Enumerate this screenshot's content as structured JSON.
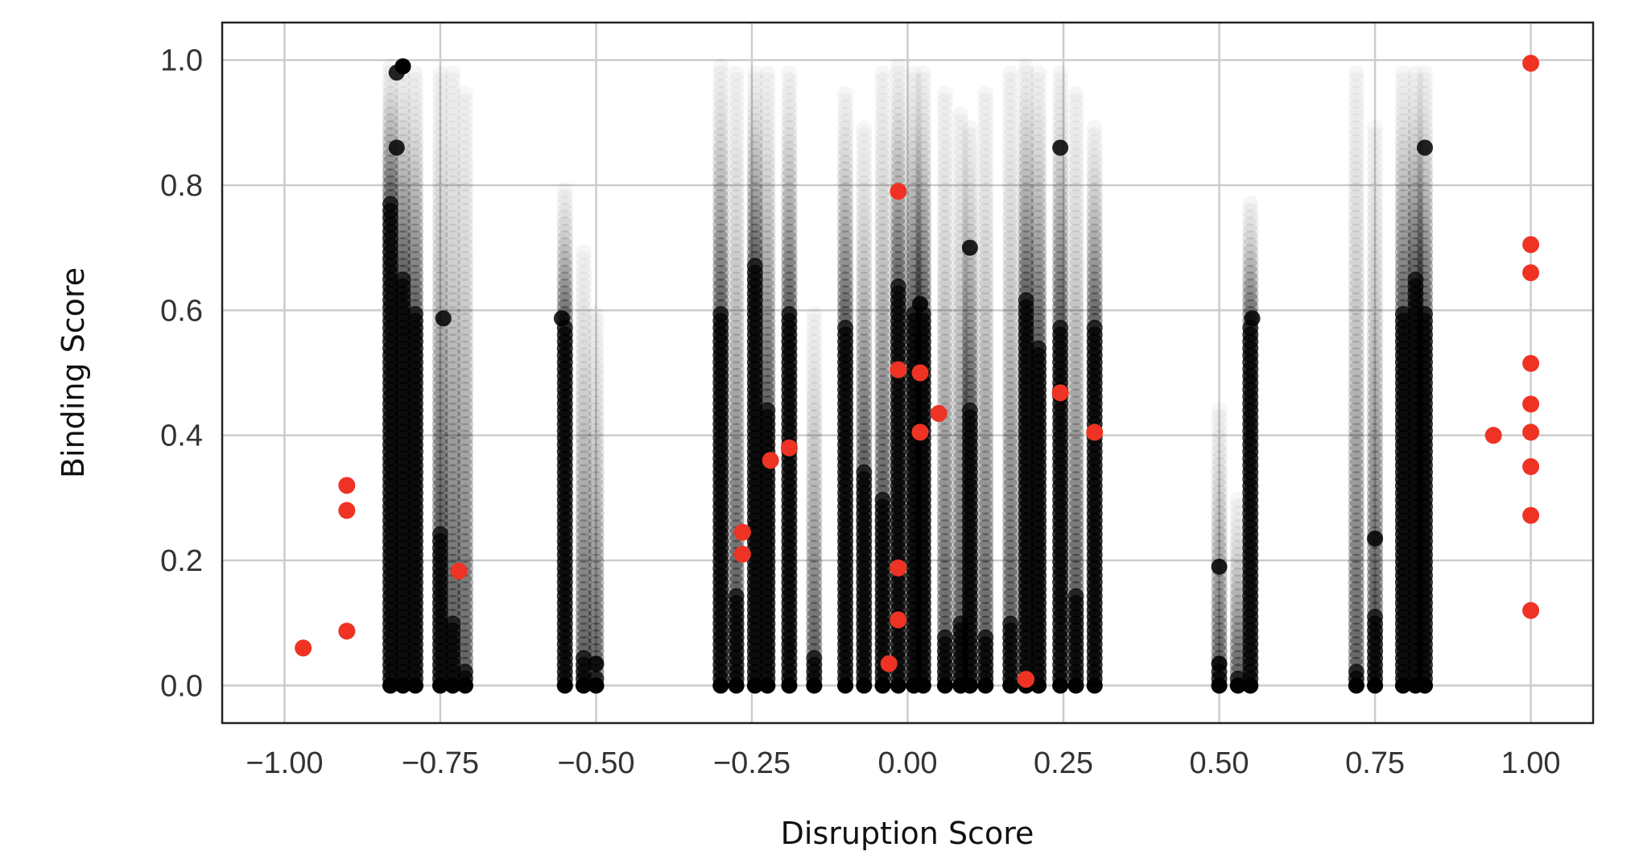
{
  "chart_data": {
    "type": "scatter",
    "xlabel": "Disruption Score",
    "ylabel": "Binding Score",
    "xlim": [
      -1.1,
      1.1
    ],
    "ylim": [
      -0.06,
      1.06
    ],
    "x_ticks": [
      -1.0,
      -0.75,
      -0.5,
      -0.25,
      0.0,
      0.25,
      0.5,
      0.75,
      1.0
    ],
    "x_tick_labels": [
      "−1.00",
      "−0.75",
      "−0.50",
      "−0.25",
      "0.00",
      "0.25",
      "0.50",
      "0.75",
      "1.00"
    ],
    "y_ticks": [
      0.0,
      0.2,
      0.4,
      0.6,
      0.8,
      1.0
    ],
    "y_tick_labels": [
      "0.0",
      "0.2",
      "0.4",
      "0.6",
      "0.8",
      "1.0"
    ],
    "grid": true,
    "colors": {
      "highlight": "#ee3324",
      "background_points": "#000000",
      "grid": "#cccccc",
      "frame": "#222222"
    },
    "background_columns": [
      {
        "x": -0.83,
        "ymax": 1.0,
        "solid": 0.78
      },
      {
        "x": -0.81,
        "ymax": 0.99,
        "solid": 0.66
      },
      {
        "x": -0.79,
        "ymax": 0.98,
        "solid": 0.6
      },
      {
        "x": -0.75,
        "ymax": 0.98,
        "solid": 0.25
      },
      {
        "x": -0.73,
        "ymax": 0.98,
        "solid": 0.1
      },
      {
        "x": -0.71,
        "ymax": 0.95,
        "solid": 0.03
      },
      {
        "x": -0.55,
        "ymax": 0.8,
        "solid": 0.58
      },
      {
        "x": -0.52,
        "ymax": 0.7,
        "solid": 0.05
      },
      {
        "x": -0.5,
        "ymax": 0.6,
        "solid": 0.02
      },
      {
        "x": -0.3,
        "ymax": 1.0,
        "solid": 0.6
      },
      {
        "x": -0.275,
        "ymax": 0.98,
        "solid": 0.15
      },
      {
        "x": -0.245,
        "ymax": 0.98,
        "solid": 0.68
      },
      {
        "x": -0.225,
        "ymax": 0.98,
        "solid": 0.45
      },
      {
        "x": -0.19,
        "ymax": 0.98,
        "solid": 0.6
      },
      {
        "x": -0.15,
        "ymax": 0.6,
        "solid": 0.05
      },
      {
        "x": -0.1,
        "ymax": 0.95,
        "solid": 0.58
      },
      {
        "x": -0.07,
        "ymax": 0.9,
        "solid": 0.35
      },
      {
        "x": -0.04,
        "ymax": 0.98,
        "solid": 0.3
      },
      {
        "x": -0.015,
        "ymax": 1.0,
        "solid": 0.64
      },
      {
        "x": 0.01,
        "ymax": 0.98,
        "solid": 0.6
      },
      {
        "x": 0.025,
        "ymax": 0.98,
        "solid": 0.6
      },
      {
        "x": 0.06,
        "ymax": 0.95,
        "solid": 0.08
      },
      {
        "x": 0.085,
        "ymax": 0.92,
        "solid": 0.1
      },
      {
        "x": 0.1,
        "ymax": 0.9,
        "solid": 0.45
      },
      {
        "x": 0.125,
        "ymax": 0.95,
        "solid": 0.08
      },
      {
        "x": 0.165,
        "ymax": 0.98,
        "solid": 0.1
      },
      {
        "x": 0.19,
        "ymax": 1.0,
        "solid": 0.62
      },
      {
        "x": 0.21,
        "ymax": 0.98,
        "solid": 0.55
      },
      {
        "x": 0.245,
        "ymax": 0.98,
        "solid": 0.58
      },
      {
        "x": 0.27,
        "ymax": 0.95,
        "solid": 0.15
      },
      {
        "x": 0.3,
        "ymax": 0.9,
        "solid": 0.58
      },
      {
        "x": 0.5,
        "ymax": 0.45,
        "solid": 0.03
      },
      {
        "x": 0.53,
        "ymax": 0.3,
        "solid": 0.02
      },
      {
        "x": 0.55,
        "ymax": 0.78,
        "solid": 0.58
      },
      {
        "x": 0.72,
        "ymax": 0.98,
        "solid": 0.03
      },
      {
        "x": 0.75,
        "ymax": 0.9,
        "solid": 0.12
      },
      {
        "x": 0.795,
        "ymax": 0.98,
        "solid": 0.6
      },
      {
        "x": 0.815,
        "ymax": 0.98,
        "solid": 0.66
      },
      {
        "x": 0.83,
        "ymax": 0.98,
        "solid": 0.6
      }
    ],
    "background_hotspots": [
      {
        "x": -0.745,
        "y": 0.587
      },
      {
        "x": -0.555,
        "y": 0.587
      },
      {
        "x": 0.553,
        "y": 0.587
      },
      {
        "x": 0.1,
        "y": 0.7
      },
      {
        "x": -0.82,
        "y": 0.98
      },
      {
        "x": -0.82,
        "y": 0.86
      },
      {
        "x": 0.245,
        "y": 0.86
      },
      {
        "x": 0.83,
        "y": 0.86
      },
      {
        "x": 0.75,
        "y": 0.235
      },
      {
        "x": 0.5,
        "y": 0.19
      },
      {
        "x": 0.5,
        "y": 0.035
      },
      {
        "x": -0.5,
        "y": 0.035
      },
      {
        "x": 0.02,
        "y": 0.61
      }
    ],
    "series": [
      {
        "points": [
          {
            "x": -0.97,
            "y": 0.06
          },
          {
            "x": -0.9,
            "y": 0.32
          },
          {
            "x": -0.9,
            "y": 0.28
          },
          {
            "x": -0.9,
            "y": 0.087
          },
          {
            "x": -0.72,
            "y": 0.183
          },
          {
            "x": -0.265,
            "y": 0.245
          },
          {
            "x": -0.265,
            "y": 0.21
          },
          {
            "x": -0.22,
            "y": 0.36
          },
          {
            "x": -0.19,
            "y": 0.38
          },
          {
            "x": -0.015,
            "y": 0.79
          },
          {
            "x": -0.015,
            "y": 0.505
          },
          {
            "x": -0.015,
            "y": 0.188
          },
          {
            "x": -0.015,
            "y": 0.105
          },
          {
            "x": -0.03,
            "y": 0.035
          },
          {
            "x": 0.02,
            "y": 0.5
          },
          {
            "x": 0.02,
            "y": 0.405
          },
          {
            "x": 0.05,
            "y": 0.435
          },
          {
            "x": 0.19,
            "y": 0.01
          },
          {
            "x": 0.245,
            "y": 0.468
          },
          {
            "x": 0.3,
            "y": 0.405
          },
          {
            "x": 0.94,
            "y": 0.4
          },
          {
            "x": 1.0,
            "y": 0.995
          },
          {
            "x": 1.0,
            "y": 0.705
          },
          {
            "x": 1.0,
            "y": 0.66
          },
          {
            "x": 1.0,
            "y": 0.515
          },
          {
            "x": 1.0,
            "y": 0.45
          },
          {
            "x": 1.0,
            "y": 0.405
          },
          {
            "x": 1.0,
            "y": 0.35
          },
          {
            "x": 1.0,
            "y": 0.272
          },
          {
            "x": 1.0,
            "y": 0.12
          }
        ]
      }
    ]
  }
}
